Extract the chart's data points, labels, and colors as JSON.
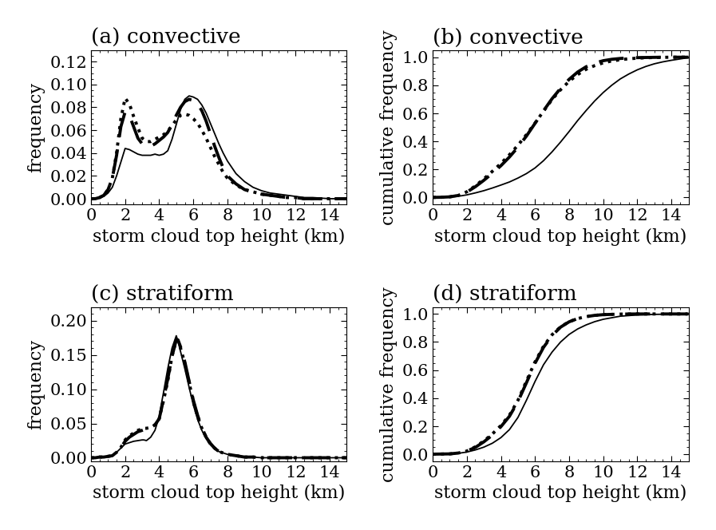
{
  "titles": [
    "(a) convective",
    "(b) convective",
    "(c) stratiform",
    "(d) stratiform"
  ],
  "xlabels": [
    "storm cloud top height (km)",
    "storm cloud top height (km)",
    "storm cloud top height (km)",
    "storm cloud top height (km)"
  ],
  "ylabels": [
    "frequency",
    "cumulative frequency",
    "frequency",
    "cumulative frequency"
  ],
  "xlim": [
    0,
    15
  ],
  "background_color": "#ffffff",
  "line_styles": [
    {
      "style": "-",
      "lw": 1.3,
      "color": "#000000"
    },
    {
      "style": "--",
      "lw": 2.8,
      "color": "#000000",
      "dashes": [
        8,
        4
      ]
    },
    {
      "style": ":",
      "lw": 2.8,
      "color": "#000000"
    }
  ],
  "conv_freq_x": [
    0.0,
    0.25,
    0.5,
    0.75,
    1.0,
    1.25,
    1.5,
    1.75,
    2.0,
    2.25,
    2.5,
    2.75,
    3.0,
    3.25,
    3.5,
    3.75,
    4.0,
    4.25,
    4.5,
    4.75,
    5.0,
    5.25,
    5.5,
    5.75,
    6.0,
    6.25,
    6.5,
    6.75,
    7.0,
    7.25,
    7.5,
    7.75,
    8.0,
    8.5,
    9.0,
    9.5,
    10.0,
    10.5,
    11.0,
    11.5,
    12.0,
    12.5,
    13.0,
    14.0,
    15.0
  ],
  "conv_freq_solid": [
    0.0,
    0.0,
    0.001,
    0.002,
    0.005,
    0.01,
    0.02,
    0.032,
    0.044,
    0.043,
    0.041,
    0.039,
    0.038,
    0.038,
    0.038,
    0.039,
    0.038,
    0.039,
    0.042,
    0.052,
    0.065,
    0.078,
    0.087,
    0.09,
    0.089,
    0.087,
    0.082,
    0.075,
    0.066,
    0.057,
    0.048,
    0.04,
    0.033,
    0.022,
    0.015,
    0.01,
    0.007,
    0.005,
    0.004,
    0.003,
    0.002,
    0.001,
    0.001,
    0.0,
    0.0
  ],
  "conv_freq_dash": [
    0.0,
    0.0,
    0.001,
    0.003,
    0.008,
    0.018,
    0.038,
    0.063,
    0.076,
    0.073,
    0.063,
    0.053,
    0.048,
    0.046,
    0.046,
    0.048,
    0.051,
    0.054,
    0.058,
    0.065,
    0.073,
    0.08,
    0.085,
    0.087,
    0.086,
    0.083,
    0.077,
    0.068,
    0.057,
    0.046,
    0.036,
    0.027,
    0.02,
    0.013,
    0.008,
    0.006,
    0.004,
    0.003,
    0.002,
    0.001,
    0.001,
    0.0,
    0.0,
    0.0,
    0.0
  ],
  "conv_freq_dot": [
    0.0,
    0.0,
    0.001,
    0.003,
    0.008,
    0.018,
    0.04,
    0.07,
    0.088,
    0.083,
    0.072,
    0.062,
    0.053,
    0.05,
    0.05,
    0.052,
    0.054,
    0.056,
    0.059,
    0.064,
    0.069,
    0.073,
    0.074,
    0.073,
    0.07,
    0.066,
    0.06,
    0.053,
    0.045,
    0.037,
    0.03,
    0.023,
    0.018,
    0.012,
    0.008,
    0.006,
    0.004,
    0.003,
    0.002,
    0.001,
    0.001,
    0.0,
    0.0,
    0.0,
    0.0
  ],
  "conv_cum_x": [
    0.0,
    0.5,
    1.0,
    1.5,
    2.0,
    2.5,
    3.0,
    3.5,
    4.0,
    4.5,
    5.0,
    5.5,
    6.0,
    6.5,
    7.0,
    7.5,
    8.0,
    8.5,
    9.0,
    9.5,
    10.0,
    10.5,
    11.0,
    11.5,
    12.0,
    12.5,
    13.0,
    13.5,
    14.0,
    15.0
  ],
  "conv_cum_solid": [
    0.0,
    0.001,
    0.003,
    0.008,
    0.018,
    0.032,
    0.048,
    0.067,
    0.088,
    0.11,
    0.138,
    0.17,
    0.21,
    0.262,
    0.325,
    0.395,
    0.47,
    0.548,
    0.62,
    0.688,
    0.748,
    0.8,
    0.845,
    0.88,
    0.91,
    0.934,
    0.953,
    0.967,
    0.978,
    0.997
  ],
  "conv_cum_dash": [
    0.0,
    0.001,
    0.004,
    0.014,
    0.038,
    0.076,
    0.122,
    0.172,
    0.226,
    0.288,
    0.358,
    0.438,
    0.528,
    0.618,
    0.704,
    0.778,
    0.842,
    0.894,
    0.932,
    0.958,
    0.975,
    0.985,
    0.991,
    0.995,
    0.997,
    0.998,
    0.999,
    1.0,
    1.0,
    1.0
  ],
  "conv_cum_dot": [
    0.0,
    0.001,
    0.004,
    0.014,
    0.04,
    0.082,
    0.132,
    0.186,
    0.242,
    0.304,
    0.372,
    0.448,
    0.53,
    0.615,
    0.698,
    0.768,
    0.828,
    0.876,
    0.914,
    0.94,
    0.96,
    0.973,
    0.982,
    0.989,
    0.993,
    0.996,
    0.998,
    0.999,
    1.0,
    1.0
  ],
  "strat_freq_x": [
    0.0,
    0.25,
    0.5,
    0.75,
    1.0,
    1.25,
    1.5,
    1.75,
    2.0,
    2.25,
    2.5,
    2.75,
    3.0,
    3.1,
    3.25,
    3.5,
    3.75,
    4.0,
    4.1,
    4.25,
    4.5,
    4.75,
    5.0,
    5.1,
    5.25,
    5.5,
    5.75,
    6.0,
    6.25,
    6.5,
    6.75,
    7.0,
    7.25,
    7.5,
    8.0,
    8.5,
    9.0,
    9.5,
    10.0,
    11.0,
    12.0,
    13.0,
    14.0,
    15.0
  ],
  "strat_freq_solid": [
    0.0,
    0.0,
    0.001,
    0.001,
    0.002,
    0.003,
    0.008,
    0.014,
    0.02,
    0.022,
    0.024,
    0.025,
    0.026,
    0.026,
    0.025,
    0.03,
    0.04,
    0.06,
    0.075,
    0.095,
    0.13,
    0.16,
    0.178,
    0.17,
    0.155,
    0.13,
    0.103,
    0.077,
    0.056,
    0.04,
    0.028,
    0.019,
    0.013,
    0.009,
    0.005,
    0.003,
    0.001,
    0.001,
    0.0,
    0.0,
    0.0,
    0.0,
    0.0,
    0.0
  ],
  "strat_freq_dash": [
    0.0,
    0.0,
    0.001,
    0.001,
    0.002,
    0.003,
    0.008,
    0.015,
    0.024,
    0.03,
    0.034,
    0.038,
    0.04,
    0.041,
    0.042,
    0.044,
    0.048,
    0.057,
    0.068,
    0.085,
    0.115,
    0.148,
    0.172,
    0.172,
    0.162,
    0.14,
    0.112,
    0.084,
    0.062,
    0.044,
    0.03,
    0.021,
    0.014,
    0.009,
    0.005,
    0.003,
    0.001,
    0.001,
    0.0,
    0.0,
    0.0,
    0.0,
    0.0,
    0.0
  ],
  "strat_freq_dot": [
    0.0,
    0.0,
    0.001,
    0.001,
    0.002,
    0.003,
    0.008,
    0.015,
    0.026,
    0.032,
    0.036,
    0.04,
    0.042,
    0.043,
    0.043,
    0.044,
    0.048,
    0.057,
    0.068,
    0.083,
    0.112,
    0.148,
    0.172,
    0.17,
    0.16,
    0.138,
    0.11,
    0.082,
    0.06,
    0.043,
    0.03,
    0.02,
    0.014,
    0.009,
    0.005,
    0.003,
    0.001,
    0.001,
    0.0,
    0.0,
    0.0,
    0.0,
    0.0,
    0.0
  ],
  "strat_cum_x": [
    0.0,
    0.5,
    1.0,
    1.5,
    2.0,
    2.5,
    3.0,
    3.5,
    4.0,
    4.5,
    5.0,
    5.5,
    6.0,
    6.5,
    7.0,
    7.5,
    8.0,
    8.5,
    9.0,
    9.5,
    10.0,
    11.0,
    12.0,
    13.0,
    14.0,
    15.0
  ],
  "strat_cum_solid": [
    0.0,
    0.001,
    0.002,
    0.006,
    0.015,
    0.03,
    0.05,
    0.078,
    0.118,
    0.175,
    0.262,
    0.385,
    0.518,
    0.638,
    0.728,
    0.8,
    0.854,
    0.893,
    0.922,
    0.945,
    0.962,
    0.984,
    0.993,
    0.997,
    0.999,
    1.0
  ],
  "strat_cum_dash": [
    0.0,
    0.001,
    0.002,
    0.008,
    0.022,
    0.048,
    0.088,
    0.136,
    0.196,
    0.27,
    0.375,
    0.51,
    0.648,
    0.762,
    0.846,
    0.906,
    0.944,
    0.967,
    0.981,
    0.99,
    0.995,
    0.999,
    1.0,
    1.0,
    1.0,
    1.0
  ],
  "strat_cum_dot": [
    0.0,
    0.001,
    0.002,
    0.008,
    0.022,
    0.052,
    0.094,
    0.144,
    0.204,
    0.278,
    0.384,
    0.522,
    0.658,
    0.77,
    0.852,
    0.908,
    0.945,
    0.967,
    0.981,
    0.99,
    0.995,
    0.999,
    1.0,
    1.0,
    1.0,
    1.0
  ],
  "conv_freq_ylim": [
    -0.005,
    0.13
  ],
  "conv_freq_yticks": [
    0.0,
    0.02,
    0.04,
    0.06,
    0.08,
    0.1,
    0.12
  ],
  "cum_ylim": [
    -0.05,
    1.05
  ],
  "cum_yticks": [
    0.0,
    0.2,
    0.4,
    0.6,
    0.8,
    1.0
  ],
  "strat_freq_ylim": [
    -0.005,
    0.22
  ],
  "strat_freq_yticks": [
    0.0,
    0.05,
    0.1,
    0.15,
    0.2
  ],
  "xticks": [
    0,
    2,
    4,
    6,
    8,
    10,
    12,
    14
  ],
  "title_fontsize": 19,
  "label_fontsize": 16,
  "tick_fontsize": 15,
  "figsize": [
    22.79,
    16.87
  ]
}
